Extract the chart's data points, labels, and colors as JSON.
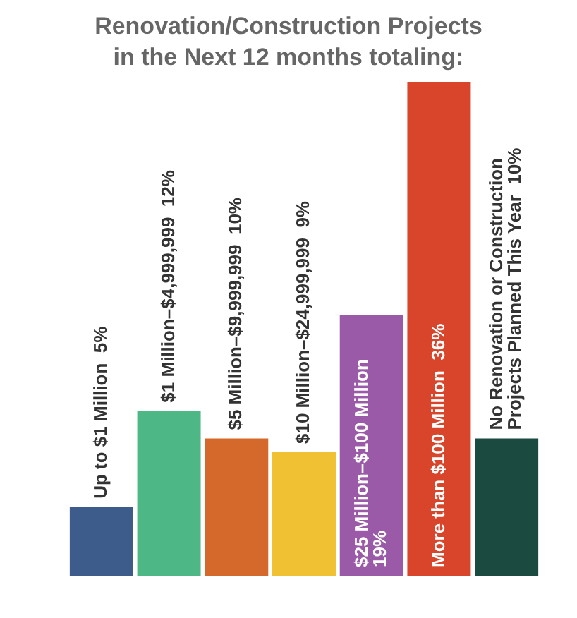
{
  "chart_data": {
    "type": "bar",
    "title": "Renovation/Construction Projects in the Next 12 months totaling:",
    "categories": [
      "Up to $1 Million",
      "$1 Million–$4,999,999",
      "$5 Million–$9,999,999",
      "$10 Million–$24,999,999",
      "$25 Million–$100 Million",
      "More than $100 Million",
      "No Renovation or Construction Projects Planned This Year"
    ],
    "values": [
      5,
      12,
      10,
      9,
      19,
      36,
      10
    ],
    "value_labels": [
      "5%",
      "12%",
      "10%",
      "9%",
      "19%",
      "36%",
      "10%"
    ],
    "colors": [
      "#3d5c8c",
      "#4db886",
      "#d4692b",
      "#f0c233",
      "#9a5aa8",
      "#d8452b",
      "#1b4a40"
    ],
    "tick_labels": false
  }
}
